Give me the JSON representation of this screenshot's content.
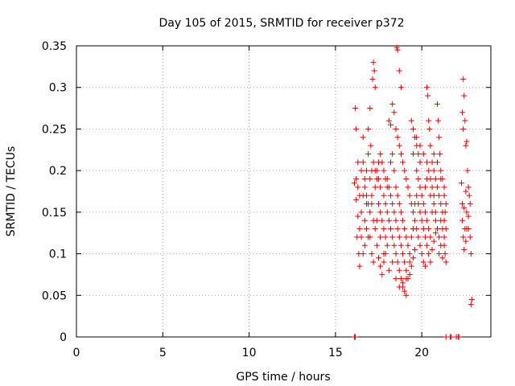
{
  "chart_data": {
    "type": "scatter",
    "title": "Day 105 of 2015, SRMTID for receiver p372",
    "xlabel": "GPS time / hours",
    "ylabel": "SRMTID / TECUs",
    "xlim": [
      0,
      24
    ],
    "ylim": [
      0,
      0.35
    ],
    "xticks": [
      0,
      5,
      10,
      15,
      20
    ],
    "xtick_labels": [
      "0",
      "5",
      "10",
      "15",
      "20"
    ],
    "yticks": [
      0,
      0.05,
      0.1,
      0.15,
      0.2,
      0.25,
      0.3,
      0.35
    ],
    "ytick_labels": [
      "0",
      "0.05",
      "0.1",
      "0.15",
      "0.2",
      "0.25",
      "0.3",
      "0.35"
    ],
    "grid": true,
    "marker": "plus",
    "color": "#e00000",
    "series": [
      {
        "name": "SRMTID",
        "points": [
          [
            16.1,
            0.0
          ],
          [
            16.15,
            0.0
          ],
          [
            21.4,
            0.0
          ],
          [
            21.65,
            0.0
          ],
          [
            21.7,
            0.0
          ],
          [
            22.0,
            0.0
          ],
          [
            22.1,
            0.0
          ],
          [
            22.15,
            0.0
          ],
          [
            22.9,
            0.045
          ],
          [
            22.85,
            0.039
          ],
          [
            22.4,
            0.31
          ],
          [
            22.45,
            0.29
          ],
          [
            22.5,
            0.26
          ],
          [
            22.55,
            0.23
          ],
          [
            22.35,
            0.27
          ],
          [
            22.4,
            0.25
          ],
          [
            22.6,
            0.235
          ],
          [
            22.65,
            0.2
          ],
          [
            22.7,
            0.18
          ],
          [
            22.75,
            0.17
          ],
          [
            22.8,
            0.16
          ],
          [
            22.55,
            0.175
          ],
          [
            22.6,
            0.15
          ],
          [
            22.35,
            0.14
          ],
          [
            22.4,
            0.12
          ],
          [
            22.45,
            0.105
          ],
          [
            22.5,
            0.13
          ],
          [
            22.7,
            0.13
          ],
          [
            22.8,
            0.12
          ],
          [
            22.85,
            0.1
          ],
          [
            22.3,
            0.185
          ],
          [
            22.35,
            0.16
          ],
          [
            22.6,
            0.13
          ],
          [
            22.55,
            0.115
          ],
          [
            22.45,
            0.155
          ],
          [
            22.7,
            0.145
          ],
          [
            16.15,
            0.275
          ],
          [
            16.2,
            0.25
          ],
          [
            16.3,
            0.21
          ],
          [
            16.1,
            0.185
          ],
          [
            16.2,
            0.165
          ],
          [
            16.3,
            0.145
          ],
          [
            16.25,
            0.12
          ],
          [
            16.35,
            0.1
          ],
          [
            16.4,
            0.085
          ],
          [
            16.5,
            0.15
          ],
          [
            16.6,
            0.17
          ],
          [
            16.7,
            0.19
          ],
          [
            16.8,
            0.2
          ],
          [
            16.9,
            0.22
          ],
          [
            16.6,
            0.24
          ],
          [
            16.9,
            0.25
          ],
          [
            17.0,
            0.275
          ],
          [
            17.05,
            0.23
          ],
          [
            17.1,
            0.16
          ],
          [
            17.2,
            0.14
          ],
          [
            17.3,
            0.13
          ],
          [
            17.4,
            0.11
          ],
          [
            17.5,
            0.095
          ],
          [
            17.6,
            0.085
          ],
          [
            17.7,
            0.075
          ],
          [
            17.8,
            0.09
          ],
          [
            17.9,
            0.1
          ],
          [
            18.0,
            0.11
          ],
          [
            17.2,
            0.33
          ],
          [
            17.25,
            0.32
          ],
          [
            17.3,
            0.3
          ],
          [
            17.15,
            0.31
          ],
          [
            17.4,
            0.2
          ],
          [
            17.5,
            0.19
          ],
          [
            17.6,
            0.18
          ],
          [
            17.8,
            0.17
          ],
          [
            17.9,
            0.16
          ],
          [
            18.0,
            0.15
          ],
          [
            18.1,
            0.14
          ],
          [
            18.2,
            0.13
          ],
          [
            18.3,
            0.12
          ],
          [
            18.4,
            0.11
          ],
          [
            18.5,
            0.1
          ],
          [
            18.6,
            0.09
          ],
          [
            18.7,
            0.08
          ],
          [
            18.8,
            0.07
          ],
          [
            18.9,
            0.06
          ],
          [
            19.0,
            0.055
          ],
          [
            19.1,
            0.05
          ],
          [
            18.55,
            0.348
          ],
          [
            18.6,
            0.345
          ],
          [
            18.7,
            0.32
          ],
          [
            18.8,
            0.3
          ],
          [
            18.3,
            0.28
          ],
          [
            18.4,
            0.27
          ],
          [
            18.1,
            0.26
          ],
          [
            18.2,
            0.255
          ],
          [
            18.5,
            0.25
          ],
          [
            18.6,
            0.24
          ],
          [
            18.7,
            0.23
          ],
          [
            18.8,
            0.22
          ],
          [
            18.9,
            0.21
          ],
          [
            19.0,
            0.2
          ],
          [
            19.1,
            0.19
          ],
          [
            19.2,
            0.18
          ],
          [
            19.3,
            0.17
          ],
          [
            19.4,
            0.16
          ],
          [
            19.5,
            0.15
          ],
          [
            19.6,
            0.14
          ],
          [
            19.7,
            0.13
          ],
          [
            19.8,
            0.12
          ],
          [
            19.9,
            0.11
          ],
          [
            20.0,
            0.1
          ],
          [
            20.1,
            0.09
          ],
          [
            20.2,
            0.085
          ],
          [
            19.4,
            0.26
          ],
          [
            19.5,
            0.25
          ],
          [
            19.6,
            0.24
          ],
          [
            19.7,
            0.23
          ],
          [
            19.8,
            0.22
          ],
          [
            19.9,
            0.21
          ],
          [
            20.3,
            0.3
          ],
          [
            20.35,
            0.29
          ],
          [
            20.4,
            0.26
          ],
          [
            20.45,
            0.25
          ],
          [
            20.5,
            0.23
          ],
          [
            20.6,
            0.21
          ],
          [
            20.7,
            0.2
          ],
          [
            20.8,
            0.19
          ],
          [
            20.9,
            0.18
          ],
          [
            21.0,
            0.17
          ],
          [
            21.1,
            0.16
          ],
          [
            21.2,
            0.15
          ],
          [
            21.3,
            0.14
          ],
          [
            21.4,
            0.13
          ],
          [
            20.9,
            0.28
          ],
          [
            20.95,
            0.26
          ],
          [
            21.0,
            0.24
          ],
          [
            21.05,
            0.22
          ],
          [
            21.1,
            0.2
          ],
          [
            21.2,
            0.19
          ],
          [
            21.3,
            0.18
          ],
          [
            20.2,
            0.12
          ],
          [
            20.3,
            0.11
          ],
          [
            20.4,
            0.1
          ],
          [
            20.5,
            0.09
          ],
          [
            20.6,
            0.105
          ],
          [
            20.7,
            0.115
          ],
          [
            20.8,
            0.125
          ],
          [
            21.0,
            0.1
          ],
          [
            21.1,
            0.11
          ],
          [
            21.2,
            0.095
          ],
          [
            21.3,
            0.12
          ],
          [
            21.35,
            0.15
          ],
          [
            21.4,
            0.16
          ],
          [
            16.4,
            0.13
          ],
          [
            16.5,
            0.12
          ],
          [
            16.7,
            0.14
          ],
          [
            16.8,
            0.13
          ],
          [
            16.9,
            0.12
          ],
          [
            17.0,
            0.15
          ],
          [
            17.1,
            0.17
          ],
          [
            17.3,
            0.18
          ],
          [
            17.5,
            0.16
          ],
          [
            17.6,
            0.15
          ],
          [
            17.7,
            0.14
          ],
          [
            17.8,
            0.13
          ],
          [
            17.9,
            0.12
          ],
          [
            18.0,
            0.19
          ],
          [
            18.1,
            0.18
          ],
          [
            18.2,
            0.17
          ],
          [
            18.3,
            0.16
          ],
          [
            18.4,
            0.15
          ],
          [
            18.5,
            0.14
          ],
          [
            18.6,
            0.13
          ],
          [
            18.7,
            0.12
          ],
          [
            18.8,
            0.11
          ],
          [
            18.9,
            0.1
          ],
          [
            19.0,
            0.09
          ],
          [
            19.1,
            0.08
          ],
          [
            19.2,
            0.07
          ],
          [
            19.3,
            0.075
          ],
          [
            19.4,
            0.085
          ],
          [
            19.5,
            0.095
          ],
          [
            19.6,
            0.105
          ],
          [
            19.7,
            0.2
          ],
          [
            19.8,
            0.19
          ],
          [
            19.9,
            0.18
          ],
          [
            20.0,
            0.17
          ],
          [
            20.1,
            0.16
          ],
          [
            20.2,
            0.15
          ],
          [
            20.3,
            0.14
          ],
          [
            20.4,
            0.13
          ],
          [
            20.5,
            0.12
          ],
          [
            20.6,
            0.15
          ],
          [
            20.7,
            0.16
          ],
          [
            20.8,
            0.15
          ],
          [
            16.6,
            0.1
          ],
          [
            16.7,
            0.11
          ],
          [
            16.8,
            0.17
          ],
          [
            16.9,
            0.16
          ],
          [
            17.0,
            0.12
          ],
          [
            17.1,
            0.1
          ],
          [
            17.2,
            0.09
          ],
          [
            17.4,
            0.19
          ],
          [
            17.5,
            0.21
          ],
          [
            17.6,
            0.22
          ],
          [
            17.7,
            0.21
          ],
          [
            17.8,
            0.2
          ],
          [
            17.9,
            0.19
          ],
          [
            18.0,
            0.18
          ],
          [
            18.2,
            0.21
          ],
          [
            18.3,
            0.22
          ],
          [
            18.4,
            0.2
          ],
          [
            18.5,
            0.18
          ],
          [
            18.6,
            0.17
          ],
          [
            18.7,
            0.16
          ],
          [
            18.8,
            0.15
          ],
          [
            18.9,
            0.14
          ],
          [
            19.0,
            0.13
          ],
          [
            19.1,
            0.12
          ],
          [
            19.2,
            0.11
          ],
          [
            19.3,
            0.1
          ],
          [
            19.4,
            0.12
          ],
          [
            19.5,
            0.13
          ],
          [
            19.6,
            0.16
          ],
          [
            19.7,
            0.17
          ],
          [
            19.8,
            0.16
          ],
          [
            19.9,
            0.15
          ],
          [
            20.0,
            0.14
          ],
          [
            20.1,
            0.13
          ],
          [
            20.2,
            0.18
          ],
          [
            20.3,
            0.19
          ],
          [
            20.4,
            0.2
          ],
          [
            20.5,
            0.19
          ],
          [
            20.6,
            0.18
          ],
          [
            20.7,
            0.17
          ],
          [
            20.8,
            0.14
          ],
          [
            20.9,
            0.13
          ],
          [
            21.0,
            0.12
          ],
          [
            21.1,
            0.14
          ],
          [
            21.2,
            0.13
          ],
          [
            21.3,
            0.11
          ],
          [
            21.35,
            0.1
          ],
          [
            21.4,
            0.09
          ],
          [
            16.2,
            0.19
          ],
          [
            16.3,
            0.18
          ],
          [
            16.4,
            0.17
          ],
          [
            16.5,
            0.2
          ],
          [
            16.6,
            0.21
          ],
          [
            16.7,
            0.18
          ],
          [
            16.8,
            0.16
          ],
          [
            17.0,
            0.19
          ],
          [
            17.1,
            0.2
          ],
          [
            17.2,
            0.21
          ],
          [
            17.3,
            0.2
          ],
          [
            17.4,
            0.14
          ],
          [
            17.6,
            0.12
          ],
          [
            17.8,
            0.1
          ],
          [
            18.1,
            0.08
          ],
          [
            18.3,
            0.09
          ],
          [
            18.5,
            0.07
          ],
          [
            18.7,
            0.06
          ],
          [
            18.9,
            0.065
          ],
          [
            19.1,
            0.07
          ],
          [
            19.3,
            0.09
          ],
          [
            19.5,
            0.22
          ],
          [
            19.7,
            0.24
          ],
          [
            19.9,
            0.23
          ],
          [
            20.1,
            0.22
          ],
          [
            20.3,
            0.21
          ],
          [
            20.5,
            0.17
          ],
          [
            20.7,
            0.22
          ],
          [
            20.9,
            0.21
          ],
          [
            21.1,
            0.19
          ],
          [
            21.3,
            0.17
          ]
        ]
      }
    ]
  }
}
